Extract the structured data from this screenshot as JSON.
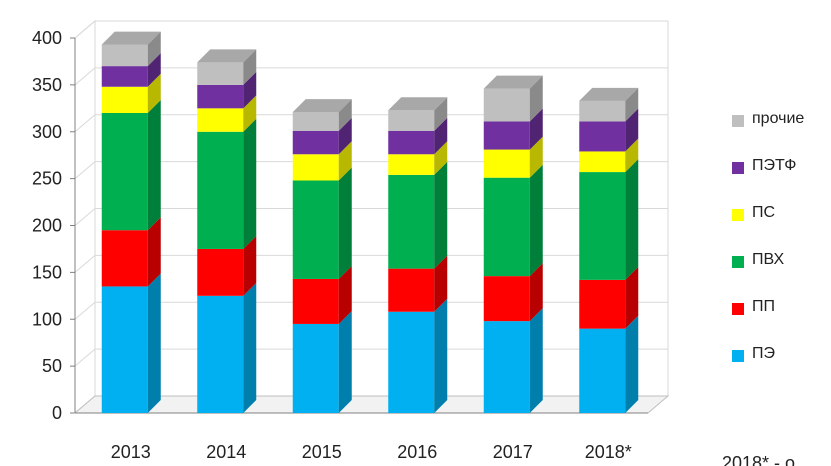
{
  "chart_data": {
    "type": "bar",
    "stacked": true,
    "three_d": true,
    "categories": [
      "2013",
      "2014",
      "2015",
      "2016",
      "2017",
      "2018*"
    ],
    "ylim": [
      0,
      400
    ],
    "yticks": [
      "0",
      "50",
      "100",
      "150",
      "200",
      "250",
      "300",
      "350",
      "400"
    ],
    "grid": true,
    "legend_position": "right",
    "series": [
      {
        "name": "ПЭ",
        "color": "#00b0f0",
        "values": [
          135,
          125,
          95,
          108,
          98,
          90
        ]
      },
      {
        "name": "ПП",
        "color": "#ff0000",
        "values": [
          60,
          50,
          48,
          46,
          48,
          52
        ]
      },
      {
        "name": "ПВХ",
        "color": "#00b050",
        "values": [
          125,
          125,
          105,
          100,
          105,
          115
        ]
      },
      {
        "name": "ПС",
        "color": "#ffff00",
        "values": [
          28,
          25,
          28,
          22,
          30,
          22
        ]
      },
      {
        "name": "ПЭТФ",
        "color": "#7030a0",
        "values": [
          22,
          25,
          25,
          25,
          30,
          32
        ]
      },
      {
        "name": "прочие",
        "color": "#bfbfbf",
        "values": [
          23,
          24,
          20,
          22,
          35,
          22
        ]
      }
    ],
    "legend_order": [
      "прочие",
      "ПЭТФ",
      "ПС",
      "ПВХ",
      "ПП",
      "ПЭ"
    ]
  },
  "footnote": "2018* - о"
}
